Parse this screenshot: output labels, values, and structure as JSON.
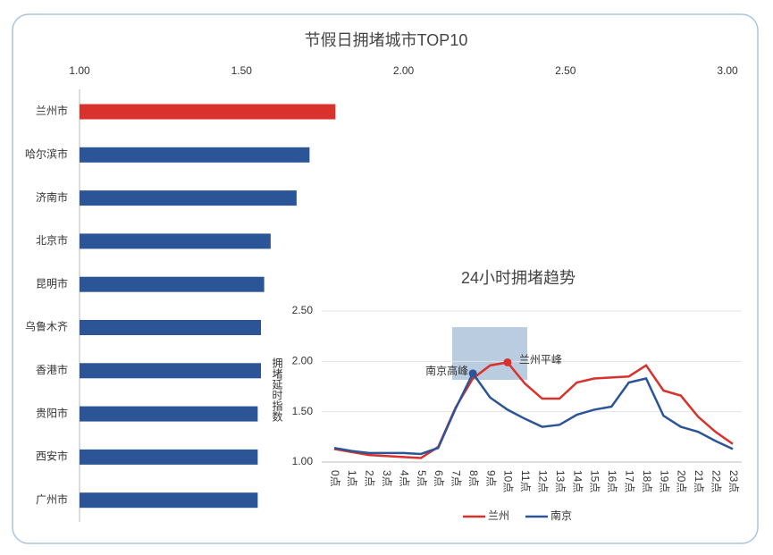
{
  "chart_data": [
    {
      "type": "bar",
      "orientation": "horizontal",
      "title": "节假日拥堵城市TOP10",
      "axis_label": "拥堵延时指数",
      "categories": [
        "兰州市",
        "哈尔滨市",
        "济南市",
        "北京市",
        "昆明市",
        "乌鲁木齐",
        "香港市",
        "贵阳市",
        "西安市",
        "广州市"
      ],
      "values": [
        1.79,
        1.71,
        1.67,
        1.59,
        1.57,
        1.56,
        1.56,
        1.55,
        1.55,
        1.55
      ],
      "colors": [
        "#d9312b",
        "#2b5597",
        "#2b5597",
        "#2b5597",
        "#2b5597",
        "#2b5597",
        "#2b5597",
        "#2b5597",
        "#2b5597",
        "#2b5597"
      ],
      "xlim": [
        1,
        3
      ],
      "xticks": [
        {
          "value": 1,
          "label": "1.00"
        },
        {
          "value": 1.5,
          "label": "1.50"
        },
        {
          "value": 2,
          "label": "2.00"
        },
        {
          "value": 2.5,
          "label": "2.50"
        },
        {
          "value": 3,
          "label": "3.00"
        }
      ]
    },
    {
      "type": "line",
      "title": "24小时拥堵趋势",
      "categories": [
        "0点",
        "1点",
        "2点",
        "3点",
        "4点",
        "5点",
        "6点",
        "7点",
        "8点",
        "9点",
        "10点",
        "11点",
        "12点",
        "13点",
        "14点",
        "15点",
        "16点",
        "17点",
        "18点",
        "19点",
        "20点",
        "21点",
        "22点",
        "23点"
      ],
      "series": [
        {
          "name": "兰州",
          "color": "#d9312b",
          "values": [
            1.13,
            1.1,
            1.07,
            1.06,
            1.05,
            1.04,
            1.15,
            1.54,
            1.83,
            1.96,
            1.99,
            1.78,
            1.63,
            1.63,
            1.79,
            1.83,
            1.84,
            1.85,
            1.96,
            1.71,
            1.66,
            1.45,
            1.3,
            1.18
          ]
        },
        {
          "name": "南京",
          "color": "#2b5597",
          "values": [
            1.14,
            1.11,
            1.09,
            1.09,
            1.09,
            1.08,
            1.14,
            1.53,
            1.88,
            1.64,
            1.52,
            1.43,
            1.35,
            1.37,
            1.47,
            1.52,
            1.55,
            1.79,
            1.83,
            1.46,
            1.35,
            1.3,
            1.21,
            1.13
          ]
        }
      ],
      "annotations": [
        {
          "text": "南京高峰",
          "series": 1,
          "index": 8
        },
        {
          "text": "兰州平峰",
          "series": 0,
          "index": 10
        }
      ],
      "ylim": [
        1,
        2.5
      ],
      "yticks": [
        {
          "value": 1,
          "label": "1.00"
        },
        {
          "value": 1.5,
          "label": "1.50"
        },
        {
          "value": 2,
          "label": "2.00"
        },
        {
          "value": 2.5,
          "label": "2.50"
        }
      ],
      "grid": true
    }
  ]
}
